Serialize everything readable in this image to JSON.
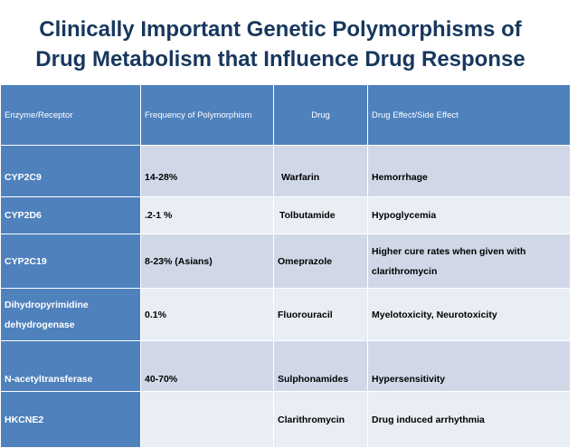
{
  "title": {
    "line1": "Clinically Important Genetic Polymorphisms of",
    "line2": "Drug Metabolism that Influence Drug Response"
  },
  "table": {
    "headers": [
      "Enzyme/Receptor",
      "Frequency of Polymorphism",
      "Drug",
      "Drug Effect/Side Effect"
    ],
    "rows": [
      {
        "enzyme": "CYP2C9",
        "frequency": "14-28%",
        "drug": "Warfarin",
        "effect": "Hemorrhage"
      },
      {
        "enzyme": "CYP2D6",
        "frequency": ".2-1 %",
        "drug": "Tolbutamide",
        "effect": "Hypoglycemia"
      },
      {
        "enzyme": "CYP2C19",
        "frequency": "8-23%  (Asians)",
        "drug": "Omeprazole",
        "effect_line1": "Higher cure rates when given with",
        "effect_line2": "clarithromycin"
      },
      {
        "enzyme_line1": "Dihydropyrimidine",
        "enzyme_line2": "dehydrogenase",
        "frequency": "0.1%",
        "drug": "Fluorouracil",
        "effect": "Myelotoxicity, Neurotoxicity"
      },
      {
        "enzyme": "N-acetyltransferase",
        "frequency": "40-70%",
        "drug": "Sulphonamides",
        "effect": "Hypersensitivity"
      },
      {
        "enzyme": "HKCNE2",
        "frequency": "",
        "drug": "Clarithromycin",
        "effect": "Drug induced arrhythmia"
      }
    ]
  },
  "colors": {
    "title": "#17375e",
    "header_bg": "#4f81bd",
    "row_odd": "#d0d8e8",
    "row_even": "#e9edf4"
  }
}
